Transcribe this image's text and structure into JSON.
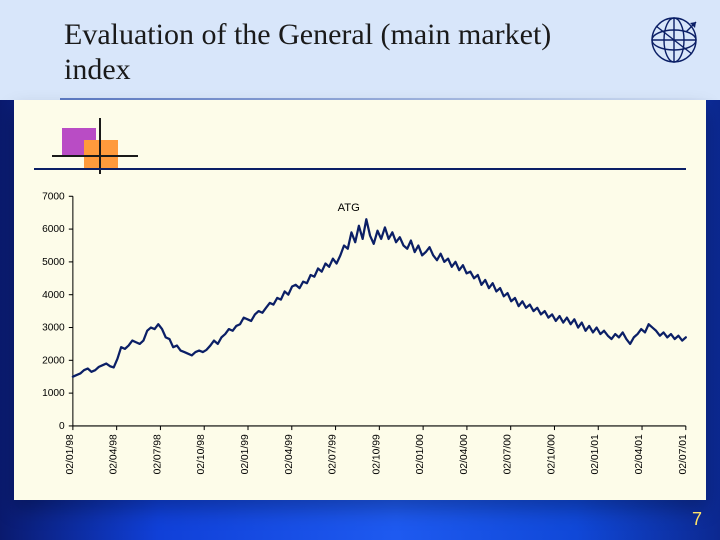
{
  "title": "Evaluation of the General (main market) index",
  "page_number": "7",
  "atg_chart": {
    "type": "line",
    "series_label": "ATG",
    "line_color": "#0b1f66",
    "line_width": 2.2,
    "background_color": "#fdfce9",
    "axis_color": "#000000",
    "tick_font_size": 10,
    "tick_font_family": "Arial, sans-serif",
    "ylim": [
      0,
      7000
    ],
    "ytick_step": 1000,
    "yticks": [
      0,
      1000,
      2000,
      3000,
      4000,
      5000,
      6000,
      7000
    ],
    "xticks": [
      "02/01/98",
      "02/04/98",
      "02/07/98",
      "02/10/98",
      "02/01/99",
      "02/04/99",
      "02/07/99",
      "02/10/99",
      "02/01/00",
      "02/04/00",
      "02/07/00",
      "02/10/00",
      "02/01/01",
      "02/04/01",
      "02/07/01"
    ],
    "values": [
      1500,
      1550,
      1600,
      1700,
      1750,
      1650,
      1700,
      1800,
      1850,
      1900,
      1820,
      1780,
      2050,
      2400,
      2350,
      2450,
      2600,
      2550,
      2500,
      2600,
      2900,
      3000,
      2950,
      3100,
      2950,
      2700,
      2650,
      2400,
      2450,
      2300,
      2250,
      2200,
      2150,
      2250,
      2300,
      2250,
      2320,
      2450,
      2600,
      2500,
      2700,
      2800,
      2950,
      2900,
      3050,
      3100,
      3300,
      3250,
      3200,
      3400,
      3500,
      3450,
      3600,
      3750,
      3700,
      3900,
      3850,
      4100,
      4000,
      4250,
      4300,
      4200,
      4400,
      4350,
      4600,
      4550,
      4800,
      4700,
      4950,
      4850,
      5100,
      4950,
      5200,
      5500,
      5400,
      5900,
      5600,
      6100,
      5700,
      6300,
      5800,
      5550,
      5950,
      5700,
      6050,
      5700,
      5900,
      5600,
      5750,
      5500,
      5400,
      5650,
      5300,
      5500,
      5200,
      5300,
      5450,
      5200,
      5050,
      5250,
      5000,
      5100,
      4850,
      5000,
      4750,
      4900,
      4650,
      4700,
      4500,
      4600,
      4300,
      4450,
      4200,
      4350,
      4100,
      4200,
      3950,
      4050,
      3800,
      3900,
      3650,
      3800,
      3600,
      3700,
      3500,
      3600,
      3400,
      3500,
      3300,
      3400,
      3200,
      3350,
      3150,
      3300,
      3100,
      3250,
      3000,
      3150,
      2900,
      3050,
      2850,
      3000,
      2800,
      2900,
      2750,
      2650,
      2800,
      2700,
      2850,
      2650,
      2500,
      2700,
      2800,
      2950,
      2850,
      3100,
      3000,
      2900,
      2750,
      2850,
      2700,
      2800,
      2650,
      2750,
      2600,
      2700
    ]
  },
  "decoration": {
    "square1_color": "#b94cc5",
    "square2_color": "#ff9a3c",
    "axis_stroke": "#1a1a1a"
  },
  "corner_icon_stroke": "#0b1f66"
}
